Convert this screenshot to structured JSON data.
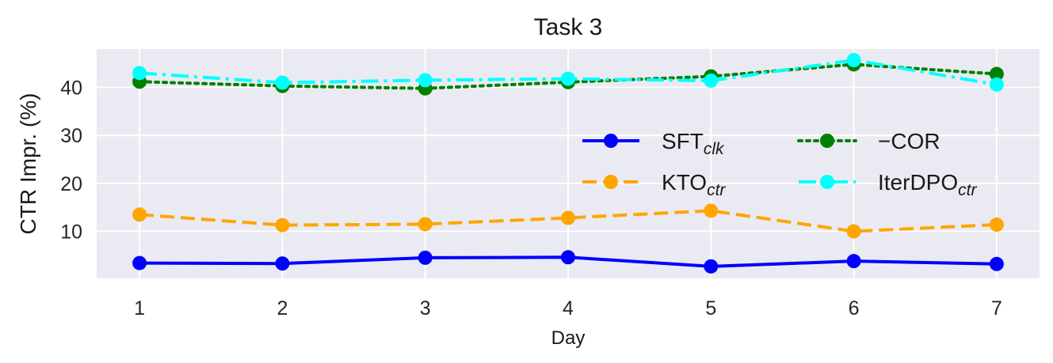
{
  "chart_data": {
    "type": "line",
    "title": "Task 3",
    "xlabel": "Day",
    "ylabel": "CTR Impr. (%)",
    "x": [
      1,
      2,
      3,
      4,
      5,
      6,
      7
    ],
    "xlim": [
      0.7,
      7.3
    ],
    "ylim": [
      0.2,
      48.0
    ],
    "yticks": [
      10,
      20,
      30,
      40
    ],
    "grid": true,
    "legend_position": "center-right",
    "legend_columns": 2,
    "series": [
      {
        "name": "SFT",
        "name_sub": "clk",
        "color": "#0000ff",
        "linestyle": "solid",
        "values": [
          3.4,
          3.3,
          4.5,
          4.6,
          2.7,
          3.8,
          3.2
        ]
      },
      {
        "name": "KTO",
        "name_sub": "ctr",
        "color": "#ffa500",
        "linestyle": "dashed",
        "values": [
          13.5,
          11.3,
          11.5,
          12.8,
          14.3,
          10.0,
          11.4
        ]
      },
      {
        "name": "−COR",
        "name_sub": "",
        "color": "#008000",
        "linestyle": "dotted",
        "values": [
          41.2,
          40.3,
          39.8,
          41.1,
          42.3,
          44.8,
          42.8
        ]
      },
      {
        "name": "IterDPO",
        "name_sub": "ctr",
        "color": "#00ffff",
        "linestyle": "dashdot",
        "values": [
          43.0,
          41.0,
          41.5,
          41.8,
          41.4,
          45.7,
          40.6
        ]
      }
    ]
  }
}
